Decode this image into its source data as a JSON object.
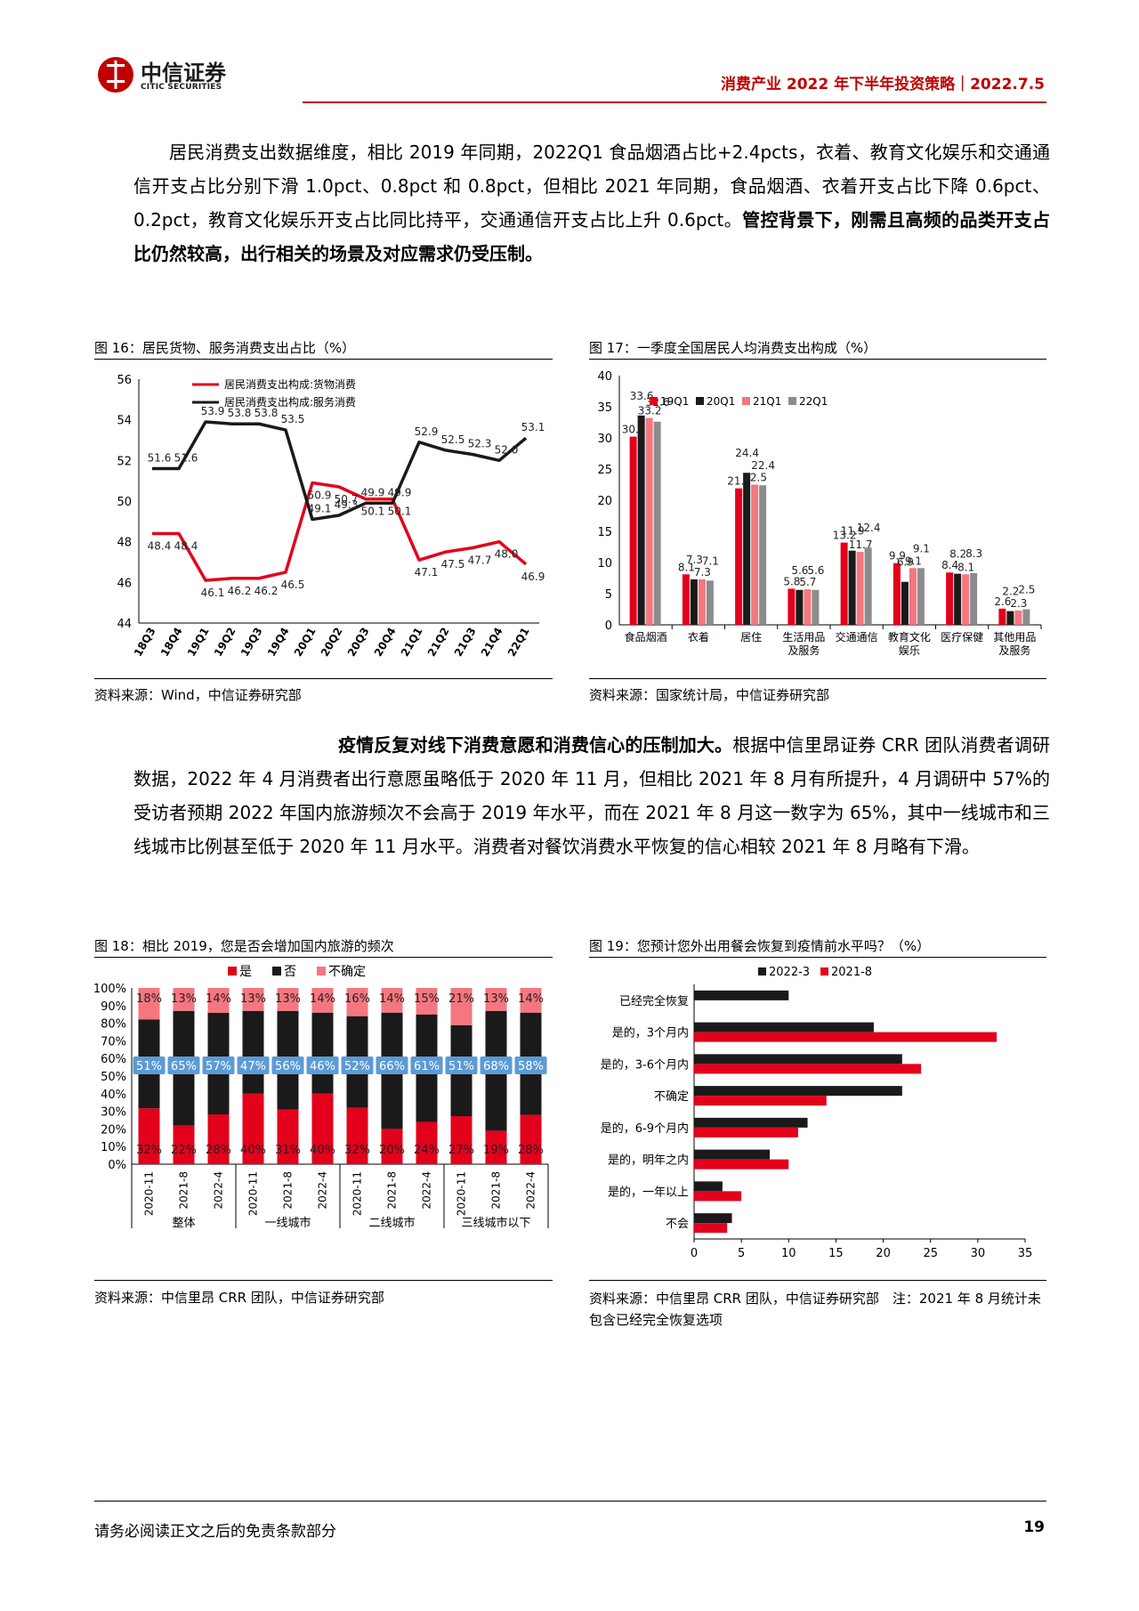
{
  "header": {
    "logo_cn": "中信证券",
    "logo_en": "CITIC SECURITIES",
    "title": "消费产业 2022 年下半年投资策略｜2022.7.5"
  },
  "para1": {
    "text": "居民消费支出数据维度，相比 2019 年同期，2022Q1 食品烟酒占比+2.4pcts，衣着、教育文化娱乐和交通通信开支占比分别下滑 1.0pct、0.8pct 和 0.8pct，但相比 2021 年同期，食品烟酒、衣着开支占比下降 0.6pct、0.2pct，教育文化娱乐开支占比同比持平，交通通信开支占比上升 0.6pct。",
    "bold": "管控背景下，刚需且高频的品类开支占比仍然较高，出行相关的场景及对应需求仍受压制。"
  },
  "para2": {
    "bold": "疫情反复对线下消费意愿和消费信心的压制加大。",
    "text": "根据中信里昂证券 CRR 团队消费者调研数据，2022 年 4 月消费者出行意愿虽略低于 2020 年 11 月，但相比 2021 年 8 月有所提升，4 月调研中 57%的受访者预期 2022 年国内旅游频次不会高于 2019 年水平，而在 2021 年 8 月这一数字为 65%，其中一线城市和三线城市比例甚至低于 2020 年 11 月水平。消费者对餐饮消费水平恢复的信心相较 2021 年 8 月略有下滑。"
  },
  "fig16": {
    "title": "图 16：居民货物、服务消费支出占比（%）",
    "source": "资料来源：Wind，中信证券研究部"
  },
  "fig17": {
    "title": "图 17：一季度全国居民人均消费支出构成（%）",
    "source": "资料来源：国家统计局，中信证券研究部"
  },
  "fig18": {
    "title": "图 18：相比 2019，您是否会增加国内旅游的频次",
    "source": "资料来源：中信里昂 CRR 团队，中信证券研究部"
  },
  "fig19": {
    "title": "图 19：您预计您外出用餐会恢复到疫情前水平吗？（%）",
    "source": "资料来源：中信里昂 CRR 团队，中信证券研究部　注：2021 年 8 月统计未包含已经完全恢复选项"
  },
  "footer": {
    "disclaimer": "请务必阅读正文之后的免责条款部分",
    "page": "19"
  },
  "colors": {
    "red": "#e3001b",
    "black": "#1a1a1a",
    "pink": "#f4777f",
    "gray": "#8c8c8c",
    "blue": "#5b9bd5",
    "brand": "#c00000"
  },
  "chart_data": [
    {
      "type": "line",
      "x": [
        "18Q3",
        "18Q4",
        "19Q1",
        "19Q2",
        "19Q3",
        "19Q4",
        "20Q1",
        "20Q2",
        "20Q3",
        "20Q4",
        "21Q1",
        "21Q2",
        "21Q3",
        "21Q4",
        "22Q1"
      ],
      "series": [
        {
          "name": "居民消费支出构成:货物消费",
          "values": [
            48.4,
            48.4,
            46.1,
            46.2,
            46.2,
            46.5,
            50.9,
            50.7,
            50.1,
            50.1,
            47.1,
            47.5,
            47.7,
            48.0,
            46.9
          ]
        },
        {
          "name": "居民消费支出构成:服务消费",
          "values": [
            51.6,
            51.6,
            53.9,
            53.8,
            53.8,
            53.5,
            49.1,
            49.3,
            49.9,
            49.9,
            52.9,
            52.5,
            52.3,
            52.0,
            53.1
          ]
        }
      ],
      "ylim": [
        44,
        56
      ],
      "yticks": [
        44,
        46,
        48,
        50,
        52,
        54,
        56
      ],
      "legend": "top-left"
    },
    {
      "type": "bar",
      "categories": [
        "食品烟酒",
        "衣着",
        "居住",
        "生活用品及服务",
        "交通通信",
        "教育文化娱乐",
        "医疗保健",
        "其他用品及服务"
      ],
      "series": [
        {
          "name": "19Q1",
          "values": [
            30.2,
            8.1,
            21.9,
            5.8,
            13.2,
            9.9,
            8.4,
            2.6
          ]
        },
        {
          "name": "20Q1",
          "values": [
            33.6,
            7.3,
            24.4,
            5.6,
            11.9,
            6.9,
            8.2,
            2.2
          ]
        },
        {
          "name": "21Q1",
          "values": [
            33.2,
            7.3,
            22.5,
            5.7,
            11.7,
            9.1,
            8.1,
            2.3
          ]
        },
        {
          "name": "22Q1",
          "values": [
            32.6,
            7.1,
            22.4,
            5.6,
            12.4,
            9.1,
            8.3,
            2.5
          ]
        }
      ],
      "ylim": [
        0,
        40
      ],
      "yticks": [
        0,
        5,
        10,
        15,
        20,
        25,
        30,
        35,
        40
      ],
      "legend": "top"
    },
    {
      "type": "bar",
      "stacked": true,
      "categories": [
        "2020-11",
        "2021-8",
        "2022-4",
        "2020-11",
        "2021-8",
        "2022-4",
        "2020-11",
        "2021-8",
        "2022-4",
        "2020-11",
        "2021-8",
        "2022-4"
      ],
      "groups": [
        "整体",
        "一线城市",
        "二线城市",
        "三线城市以下"
      ],
      "series": [
        {
          "name": "是",
          "values": [
            32,
            22,
            28,
            40,
            31,
            40,
            32,
            20,
            24,
            27,
            19,
            28
          ]
        },
        {
          "name": "否",
          "values": [
            51,
            65,
            57,
            47,
            56,
            46,
            52,
            66,
            61,
            51,
            68,
            58
          ]
        },
        {
          "name": "不确定",
          "values": [
            18,
            13,
            14,
            13,
            13,
            14,
            16,
            14,
            15,
            21,
            13,
            14
          ]
        }
      ],
      "ylim": [
        0,
        100
      ],
      "yticks": [
        "0%",
        "10%",
        "20%",
        "30%",
        "40%",
        "50%",
        "60%",
        "70%",
        "80%",
        "90%",
        "100%"
      ],
      "legend": "top"
    },
    {
      "type": "bar",
      "orientation": "horizontal",
      "categories": [
        "已经完全恢复",
        "是的，3个月内",
        "是的，3-6个月内",
        "不确定",
        "是的，6-9个月内",
        "是的，明年之内",
        "是的，一年以上",
        "不会"
      ],
      "series": [
        {
          "name": "2022-3",
          "values": [
            10,
            19,
            22,
            22,
            12,
            8,
            3,
            4
          ]
        },
        {
          "name": "2021-8",
          "values": [
            null,
            32,
            24,
            14,
            11,
            10,
            5,
            3.5
          ]
        }
      ],
      "xlim": [
        0,
        35
      ],
      "xticks": [
        0,
        5,
        10,
        15,
        20,
        25,
        30,
        35
      ],
      "legend": "top"
    }
  ]
}
